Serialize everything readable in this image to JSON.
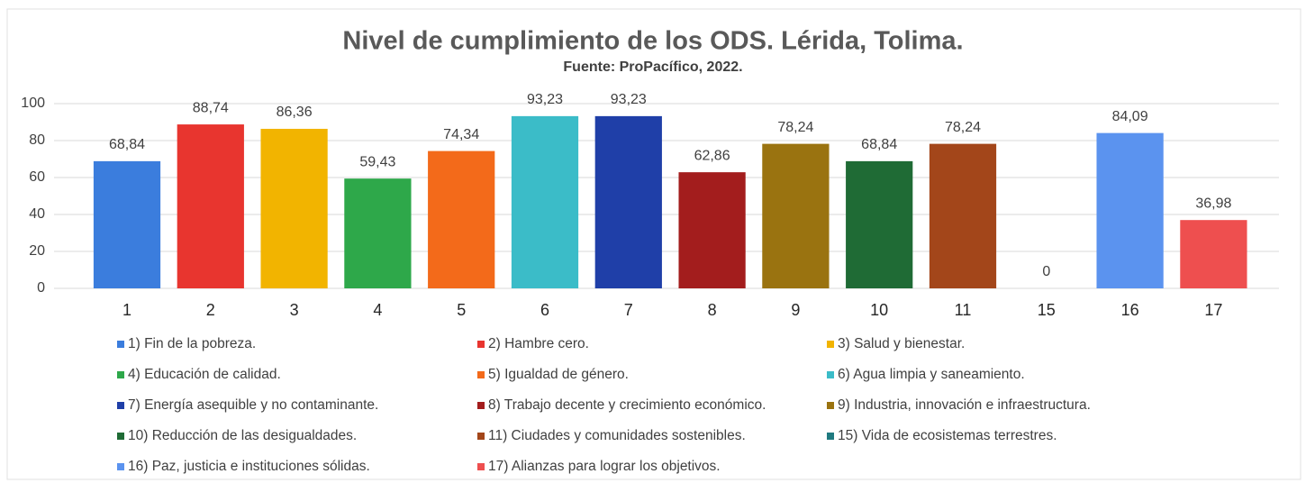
{
  "chart_data": {
    "type": "bar",
    "title": "Nivel de cumplimiento de los ODS. Lérida, Tolima.",
    "subtitle": "Fuente: ProPacífico, 2022.",
    "categories": [
      "1",
      "2",
      "3",
      "4",
      "5",
      "6",
      "7",
      "8",
      "9",
      "10",
      "11",
      "15",
      "16",
      "17"
    ],
    "values": [
      68.84,
      88.74,
      86.36,
      59.43,
      74.34,
      93.23,
      93.23,
      62.86,
      78.24,
      68.84,
      78.24,
      0,
      84.09,
      36.98
    ],
    "value_labels": [
      "68,84",
      "88,74",
      "86,36",
      "59,43",
      "74,34",
      "93,23",
      "93,23",
      "62,86",
      "78,24",
      "68,84",
      "78,24",
      "0",
      "84,09",
      "36,98"
    ],
    "colors": [
      "#3b7ddd",
      "#e8352f",
      "#f2b400",
      "#2ea84a",
      "#f36a1a",
      "#3bbcc8",
      "#1f3fa8",
      "#a31d1d",
      "#9a7310",
      "#1f6b35",
      "#a3461a",
      "#1f7a80",
      "#5b93ef",
      "#ee4f4f"
    ],
    "legend": [
      "1) Fin de la pobreza.",
      "2) Hambre cero.",
      "3) Salud y bienestar.",
      "4) Educación de calidad.",
      "5) Igualdad de género.",
      "6) Agua limpia y saneamiento.",
      "7) Energía asequible y no contaminante.",
      "8) Trabajo decente y crecimiento económico.",
      "9) Industria, innovación e infraestructura.",
      "10) Reducción de las desigualdades.",
      "11) Ciudades y comunidades sostenibles.",
      "15) Vida de ecosistemas terrestres.",
      "16) Paz, justicia e instituciones sólidas.",
      "17) Alianzas para lograr los objetivos."
    ],
    "ylim": [
      0,
      100
    ],
    "yticks": [
      0,
      20,
      40,
      60,
      80,
      100
    ],
    "grid": true
  }
}
